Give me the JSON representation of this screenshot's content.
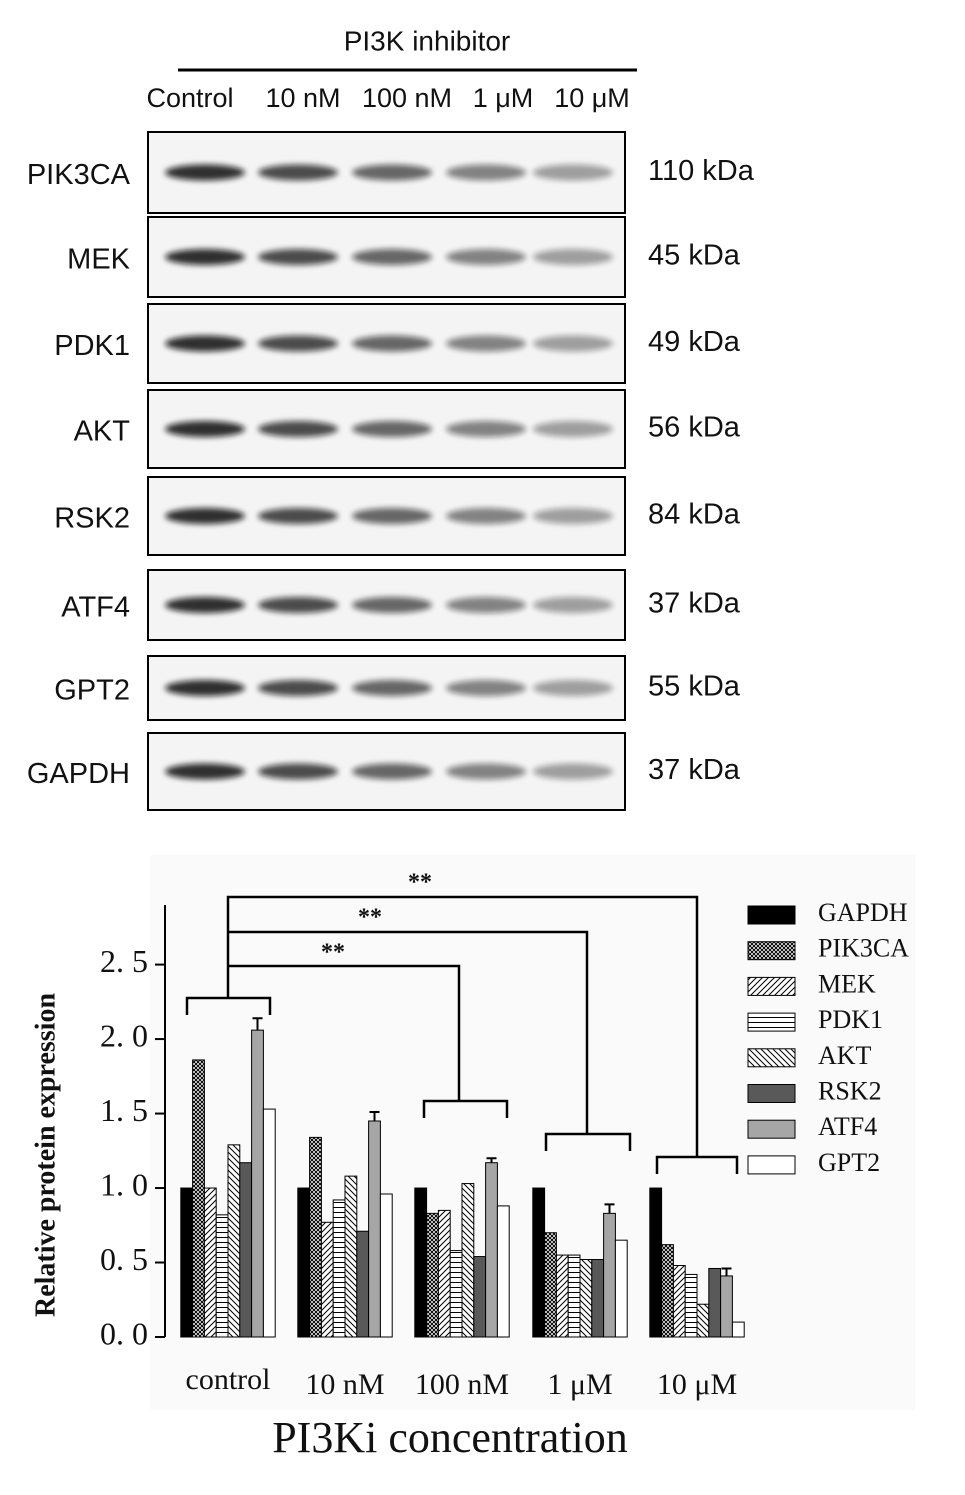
{
  "blot": {
    "header": "PI3K inhibitor",
    "lanes": [
      "Control",
      "10 nM",
      "100 nM",
      "1 μM",
      "10 μM"
    ],
    "rows": [
      {
        "protein": "PIK3CA",
        "size": "110 kDa"
      },
      {
        "protein": "MEK",
        "size": "45 kDa"
      },
      {
        "protein": "PDK1",
        "size": "49 kDa"
      },
      {
        "protein": "AKT",
        "size": "56 kDa"
      },
      {
        "protein": "RSK2",
        "size": "84 kDa"
      },
      {
        "protein": "ATF4",
        "size": "37 kDa"
      },
      {
        "protein": "GPT2",
        "size": "55 kDa"
      },
      {
        "protein": "GAPDH",
        "size": "37 kDa"
      }
    ]
  },
  "chart_data": {
    "type": "bar",
    "x_label": "PI3Ki concentration",
    "y_label": "Relative protein expression",
    "categories": [
      "control",
      "10 nM",
      "100 nM",
      "1 μM",
      "10 μM"
    ],
    "ylim": [
      0,
      2.9
    ],
    "yticks": [
      {
        "value": 0,
        "label": "0. 0"
      },
      {
        "value": 0.5,
        "label": "0. 5"
      },
      {
        "value": 1,
        "label": "1. 0"
      },
      {
        "value": 1.5,
        "label": "1. 5"
      },
      {
        "value": 2,
        "label": "2. 0"
      },
      {
        "value": 2.5,
        "label": "2. 5"
      }
    ],
    "series": [
      {
        "name": "GAPDH",
        "color": "#000000",
        "pattern": "solid",
        "values": [
          1.0,
          1.0,
          1.0,
          1.0,
          1.0
        ]
      },
      {
        "name": "PIK3CA",
        "color": "#000000",
        "pattern": "crosshatch",
        "values": [
          1.86,
          1.34,
          0.83,
          0.7,
          0.62
        ]
      },
      {
        "name": "MEK",
        "color": "#000000",
        "pattern": "diag-up",
        "values": [
          1.0,
          0.77,
          0.85,
          0.55,
          0.48
        ]
      },
      {
        "name": "PDK1",
        "color": "#000000",
        "pattern": "horizontal",
        "values": [
          0.82,
          0.92,
          0.58,
          0.55,
          0.42
        ]
      },
      {
        "name": "AKT",
        "color": "#000000",
        "pattern": "diag-down",
        "values": [
          1.29,
          1.08,
          1.03,
          0.52,
          0.22
        ]
      },
      {
        "name": "RSK2",
        "color": "#595959",
        "pattern": "solid",
        "values": [
          1.17,
          0.71,
          0.54,
          0.52,
          0.46
        ]
      },
      {
        "name": "ATF4",
        "color": "#a6a6a6",
        "pattern": "solid",
        "values": [
          2.06,
          1.45,
          1.17,
          0.83,
          0.41
        ],
        "errors": [
          0.08,
          0.06,
          0.03,
          0.06,
          0.05
        ]
      },
      {
        "name": "GPT2",
        "color": "#ffffff",
        "pattern": "solid",
        "values": [
          1.53,
          0.96,
          0.88,
          0.65,
          0.1
        ]
      }
    ],
    "annotations": [
      "**",
      "**",
      "**"
    ]
  }
}
